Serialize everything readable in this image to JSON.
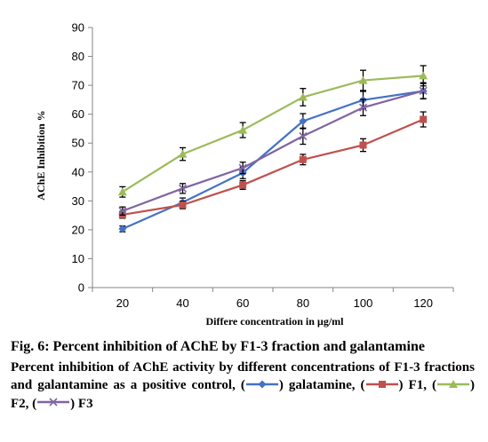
{
  "chart_data": {
    "type": "line",
    "title": "",
    "xlabel": "Differe concentration in µg/ml",
    "ylabel": "AChE Inhibition %",
    "categories": [
      "20",
      "40",
      "60",
      "80",
      "100",
      "120"
    ],
    "ylim": [
      0,
      90
    ],
    "yticks": [
      "0",
      "10",
      "20",
      "30",
      "40",
      "50",
      "60",
      "70",
      "80",
      "90"
    ],
    "grid": false,
    "legend": "none",
    "series": [
      {
        "name": "galatamine",
        "color": "#4472c4",
        "marker": "diamond",
        "values": [
          20.3,
          29.5,
          39.7,
          57.6,
          64.9,
          68.0
        ],
        "errors": [
          1.0,
          1.5,
          2.0,
          2.6,
          3.0,
          2.6
        ]
      },
      {
        "name": "F1",
        "color": "#c0504d",
        "marker": "square",
        "values": [
          25.2,
          28.6,
          35.5,
          44.3,
          49.3,
          58.2
        ],
        "errors": [
          1.2,
          1.3,
          1.5,
          1.8,
          2.2,
          2.6
        ]
      },
      {
        "name": "F2",
        "color": "#9bbb59",
        "marker": "triangle",
        "values": [
          33.1,
          46.2,
          54.5,
          65.9,
          71.7,
          73.3
        ],
        "errors": [
          1.8,
          2.2,
          2.6,
          3.0,
          3.5,
          3.5
        ]
      },
      {
        "name": "F3",
        "color": "#8064a2",
        "marker": "x",
        "values": [
          26.5,
          34.3,
          41.4,
          52.4,
          62.3,
          68.1
        ],
        "errors": [
          1.4,
          1.7,
          2.0,
          2.8,
          2.8,
          2.8
        ]
      }
    ]
  },
  "caption": {
    "title": "Fig. 6: Percent inhibition of AChE by F1-3 fraction and galantamine",
    "desc_intro": "Percent inhibition of AChE activity by different concentrations of F1-3 fractions and galantamine as a positive control, (",
    "desc_sep1": ") galatamine, (",
    "desc_sep2": ") F1, (",
    "desc_sep3": ") F2, (",
    "desc_end": ") F3"
  }
}
